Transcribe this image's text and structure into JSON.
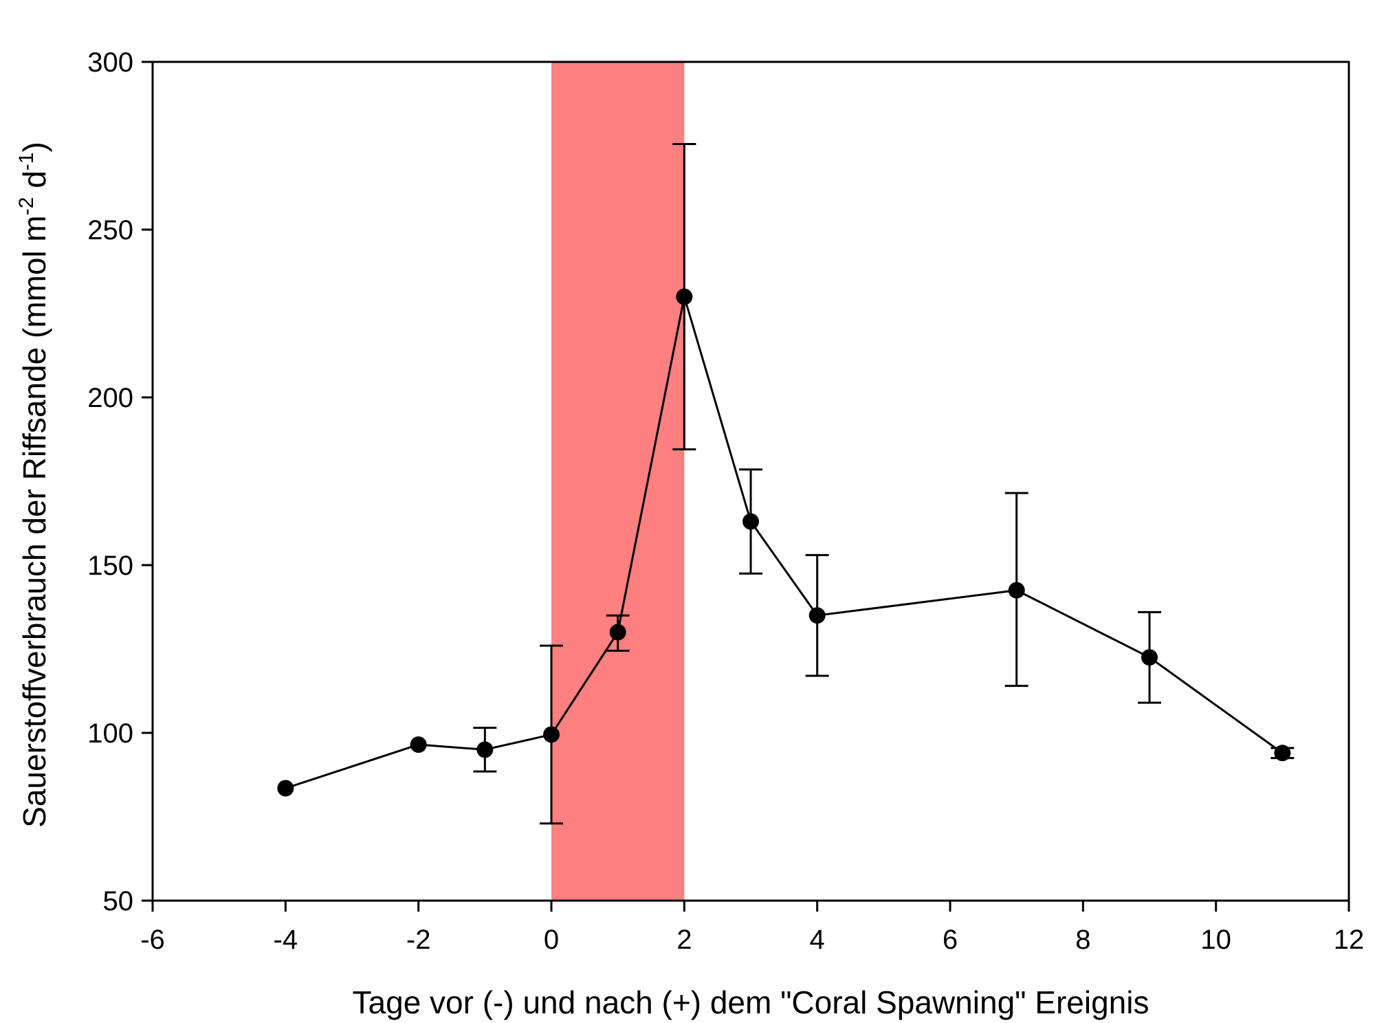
{
  "chart_data": {
    "type": "line",
    "xlabel": "Tage vor (-) und nach (+) dem \"Coral Spawning\" Ereignis",
    "ylabel": {
      "text": "Sauerstoffverbrauch der Riffsande (mmol m",
      "sup1": "-2",
      "mid": " d",
      "sup2": "-1",
      "end": ")"
    },
    "xlim": [
      -6,
      12
    ],
    "ylim": [
      50,
      300
    ],
    "xticks": [
      -6,
      -4,
      -2,
      0,
      2,
      4,
      6,
      8,
      10,
      12
    ],
    "yticks": [
      50,
      100,
      150,
      200,
      250,
      300
    ],
    "grid": false,
    "highlight_band": {
      "x": [
        0,
        2
      ],
      "color": "#ff8080"
    },
    "series": [
      {
        "color": "#000000",
        "points": [
          {
            "x": -4,
            "y": 83.5,
            "err_low": null,
            "err_high": null
          },
          {
            "x": -2,
            "y": 96.5,
            "err_low": null,
            "err_high": null
          },
          {
            "x": -1,
            "y": 95,
            "err_low": 88.5,
            "err_high": 101.5
          },
          {
            "x": 0,
            "y": 99.5,
            "err_low": 73,
            "err_high": 126
          },
          {
            "x": 1,
            "y": 130,
            "err_low": 124.5,
            "err_high": 135
          },
          {
            "x": 2,
            "y": 230,
            "err_low": 184.5,
            "err_high": 275.5
          },
          {
            "x": 3,
            "y": 163,
            "err_low": 147.5,
            "err_high": 178.5
          },
          {
            "x": 4,
            "y": 135,
            "err_low": 117,
            "err_high": 153
          },
          {
            "x": 7,
            "y": 142.5,
            "err_low": 114,
            "err_high": 171.5
          },
          {
            "x": 9,
            "y": 122.5,
            "err_low": 109,
            "err_high": 136
          },
          {
            "x": 11,
            "y": 94,
            "err_low": 92.5,
            "err_high": 95.5
          }
        ]
      }
    ]
  }
}
